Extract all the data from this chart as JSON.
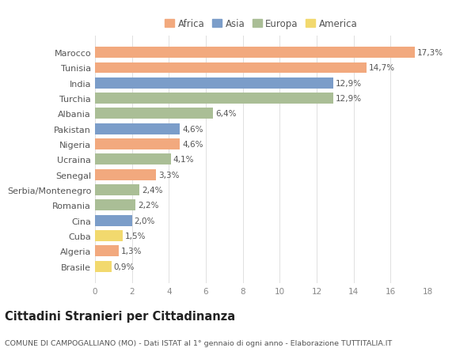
{
  "categories": [
    "Brasile",
    "Algeria",
    "Cuba",
    "Cina",
    "Romania",
    "Serbia/Montenegro",
    "Senegal",
    "Ucraina",
    "Nigeria",
    "Pakistan",
    "Albania",
    "Turchia",
    "India",
    "Tunisia",
    "Marocco"
  ],
  "values": [
    0.9,
    1.3,
    1.5,
    2.0,
    2.2,
    2.4,
    3.3,
    4.1,
    4.6,
    4.6,
    6.4,
    12.9,
    12.9,
    14.7,
    17.3
  ],
  "labels": [
    "0,9%",
    "1,3%",
    "1,5%",
    "2,0%",
    "2,2%",
    "2,4%",
    "3,3%",
    "4,1%",
    "4,6%",
    "4,6%",
    "6,4%",
    "12,9%",
    "12,9%",
    "14,7%",
    "17,3%"
  ],
  "continents": [
    "America",
    "Africa",
    "America",
    "Asia",
    "Europa",
    "Europa",
    "Africa",
    "Europa",
    "Africa",
    "Asia",
    "Europa",
    "Europa",
    "Asia",
    "Africa",
    "Africa"
  ],
  "continent_colors": {
    "Africa": "#F2A97E",
    "Asia": "#7B9DC9",
    "Europa": "#AABE96",
    "America": "#F2D96E"
  },
  "legend_order": [
    "Africa",
    "Asia",
    "Europa",
    "America"
  ],
  "xlim": [
    0,
    18
  ],
  "xticks": [
    0,
    2,
    4,
    6,
    8,
    10,
    12,
    14,
    16,
    18
  ],
  "title": "Cittadini Stranieri per Cittadinanza",
  "subtitle": "COMUNE DI CAMPOGALLIANO (MO) - Dati ISTAT al 1° gennaio di ogni anno - Elaborazione TUTTITALIA.IT",
  "background_color": "#ffffff",
  "grid_color": "#e0e0e0",
  "bar_height": 0.72,
  "label_fontsize": 7.5,
  "ylabel_fontsize": 8.0,
  "tick_fontsize": 7.5,
  "title_fontsize": 10.5,
  "subtitle_fontsize": 6.8,
  "legend_fontsize": 8.5
}
